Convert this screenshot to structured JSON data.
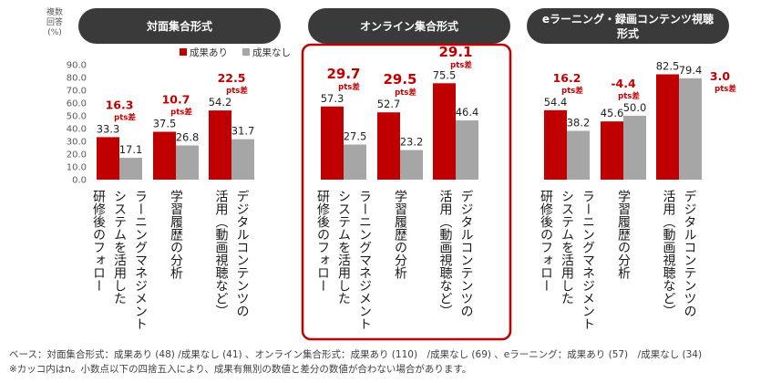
{
  "colors": {
    "yes": "#C00000",
    "no": "#A6A6A6",
    "header_bg": "#3A3A3A",
    "header_text": "#FFFFFF",
    "diff_text": "#C00000",
    "highlight": "#C00000",
    "axis_text": "#595959"
  },
  "yaxis": {
    "label": [
      "複数",
      "回答",
      "(%)"
    ],
    "ticks": [
      "90.0",
      "80.0",
      "70.0",
      "60.0",
      "50.0",
      "40.0",
      "30.0",
      "20.0",
      "10.0",
      "0.0"
    ]
  },
  "legend": {
    "yes": "成果あり",
    "no": "成果なし"
  },
  "diff_unit": "pts差",
  "chart_data": [
    {
      "type": "bar",
      "title": "対面集合形式",
      "categories": [
        "ラーニングマネジメントシステムを活用した研修後のフォロー",
        "学習履歴の分析",
        "デジタルコンテンツの活用（動画視聴など）"
      ],
      "category_lines": [
        [
          "ラーニングマネジメント",
          "システムを活用した",
          "研修後のフォロー"
        ],
        [
          "学習履歴の分析"
        ],
        [
          "デジタルコンテンツの",
          "活用（動画視聴など）"
        ]
      ],
      "series": [
        {
          "name": "成果あり",
          "values": [
            33.3,
            37.5,
            54.2
          ]
        },
        {
          "name": "成果なし",
          "values": [
            17.1,
            26.8,
            31.7
          ]
        }
      ],
      "value_labels": {
        "yes": [
          "33.3",
          "37.5",
          "54.2"
        ],
        "no": [
          "17.1",
          "26.8",
          "31.7"
        ]
      },
      "differences": [
        "16.3",
        "10.7",
        "22.5"
      ],
      "ylim": [
        0,
        90
      ]
    },
    {
      "type": "bar",
      "title": "オンライン集合形式",
      "categories": [
        "ラーニングマネジメントシステムを活用した研修後のフォロー",
        "学習履歴の分析",
        "デジタルコンテンツの活用（動画視聴など）"
      ],
      "category_lines": [
        [
          "ラーニングマネジメント",
          "システムを活用した",
          "研修後のフォロー"
        ],
        [
          "学習履歴の分析"
        ],
        [
          "デジタルコンテンツの",
          "活用（動画視聴など）"
        ]
      ],
      "series": [
        {
          "name": "成果あり",
          "values": [
            57.3,
            52.7,
            75.5
          ]
        },
        {
          "name": "成果なし",
          "values": [
            27.5,
            23.2,
            46.4
          ]
        }
      ],
      "value_labels": {
        "yes": [
          "57.3",
          "52.7",
          "75.5"
        ],
        "no": [
          "27.5",
          "23.2",
          "46.4"
        ]
      },
      "differences": [
        "29.7",
        "29.5",
        "29.1"
      ],
      "ylim": [
        0,
        90
      ]
    },
    {
      "type": "bar",
      "title": "eラーニング・録画コンテンツ視聴形式",
      "title_lines": [
        "eラーニング・録画コンテンツ視聴",
        "形式"
      ],
      "categories": [
        "ラーニングマネジメントシステムを活用した研修後のフォロー",
        "学習履歴の分析",
        "デジタルコンテンツの活用（動画視聴など）"
      ],
      "category_lines": [
        [
          "ラーニングマネジメント",
          "システムを活用した",
          "研修後のフォロー"
        ],
        [
          "学習履歴の分析"
        ],
        [
          "デジタルコンテンツの",
          "活用（動画視聴など）"
        ]
      ],
      "series": [
        {
          "name": "成果あり",
          "values": [
            54.4,
            45.6,
            82.5
          ]
        },
        {
          "name": "成果なし",
          "values": [
            38.2,
            50.0,
            79.4
          ]
        }
      ],
      "value_labels": {
        "yes": [
          "54.4",
          "45.6",
          "82.5"
        ],
        "no": [
          "38.2",
          "50.0",
          "79.4"
        ]
      },
      "differences": [
        "16.2",
        "-4.4",
        "3.0"
      ],
      "ylim": [
        0,
        90
      ]
    }
  ],
  "footnotes": [
    "ベース：対面集合形式：成果あり (48) /成果なし (41) 、オンライン集合形式：成果あり (110)　/成果なし (69) 、eラーニング：成果あり (57)　/成果なし (34)",
    "※カッコ内はn。小数点以下の四捨五入により、成果有無別の数値と差分の数値が合わない場合があります。"
  ]
}
